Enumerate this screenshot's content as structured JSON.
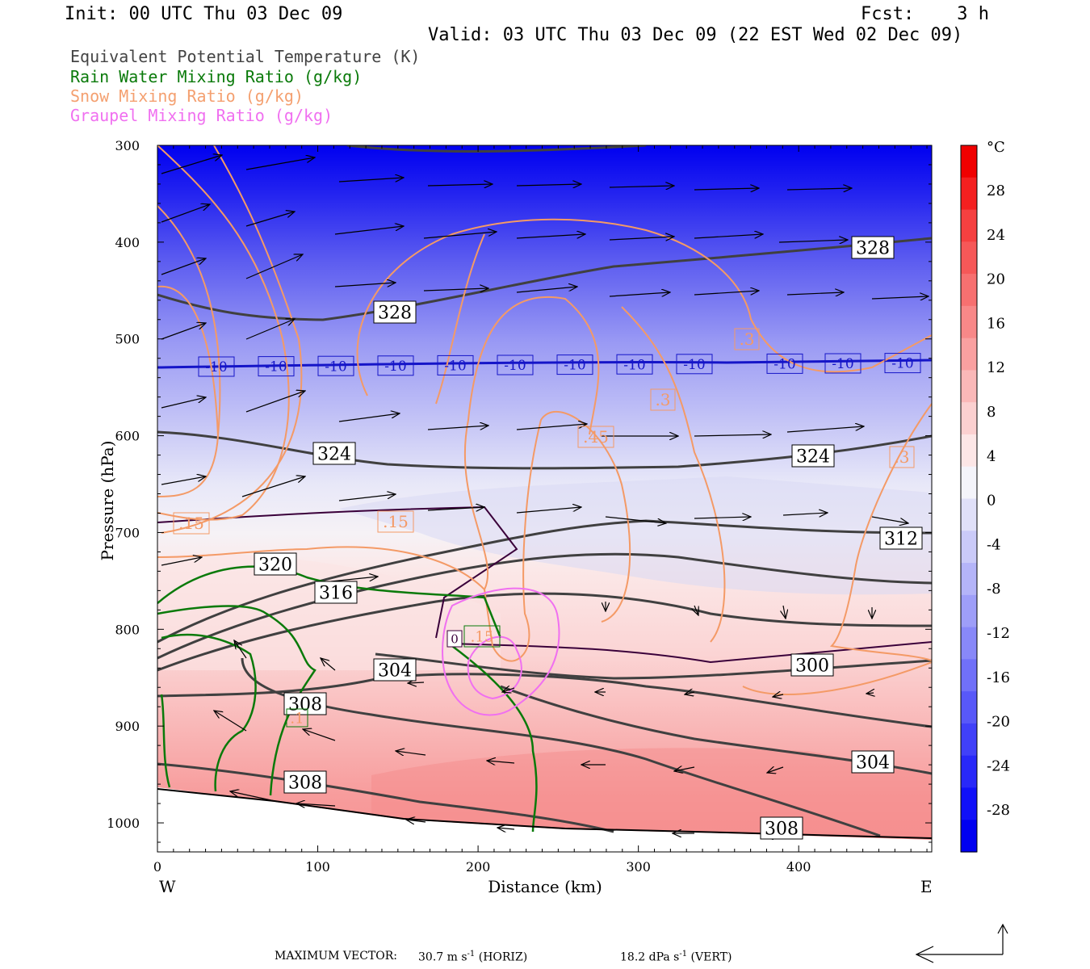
{
  "header": {
    "init": "Init: 00 UTC Thu 03 Dec 09",
    "fcst": "Fcst:    3 h",
    "valid": "Valid: 03 UTC Thu 03 Dec 09 (22 EST Wed 02 Dec 09)"
  },
  "legend": [
    {
      "label": "Equivalent Potential Temperature (K)",
      "color": "#444444"
    },
    {
      "label": "Rain Water Mixing Ratio (g/kg)",
      "color": "#0a7a0a"
    },
    {
      "label": "Snow Mixing Ratio (g/kg)",
      "color": "#f4a070"
    },
    {
      "label": "Graupel Mixing Ratio (g/kg)",
      "color": "#f070f0"
    }
  ],
  "footer": {
    "max_vector_label": "MAXIMUM VECTOR:",
    "horiz_value": "30.7 m s",
    "horiz_suffix": " (HORIZ)",
    "vert_value": "18.2 dPa s",
    "vert_suffix": " (VERT)",
    "exponent": "-1"
  },
  "chart_data": {
    "type": "cross-section",
    "xlabel": "Distance (km)",
    "ylabel": "Pressure (hPa)",
    "x_ticks": [
      0,
      100,
      200,
      300,
      400
    ],
    "xlim": [
      0,
      483
    ],
    "y_ticks": [
      300,
      400,
      500,
      600,
      700,
      800,
      900,
      1000
    ],
    "ylim": [
      300,
      1030
    ],
    "direction_left": "W",
    "direction_right": "E",
    "colorbar": {
      "unit": "°C",
      "ticks": [
        "28",
        "24",
        "20",
        "16",
        "12",
        "8",
        "4",
        "0",
        "-4",
        "-8",
        "-12",
        "-16",
        "-20",
        "-24",
        "-28"
      ],
      "colors": [
        "#f00000",
        "#f42020",
        "#f54040",
        "#f65858",
        "#f77070",
        "#f88888",
        "#f9a0a0",
        "#fab8b8",
        "#fbd0d0",
        "#fce6e6",
        "#f4f4fa",
        "#e0e0f8",
        "#cacaf8",
        "#b4b4f8",
        "#9e9ef8",
        "#8888f8",
        "#7070f8",
        "#5858f8",
        "#4040f8",
        "#2828f8",
        "#1010f8",
        "#0000f0"
      ]
    },
    "theta_e_labels": [
      "328",
      "328",
      "324",
      "324",
      "320",
      "316",
      "312",
      "304",
      "300",
      "304",
      "308",
      "308",
      "308"
    ],
    "snow_labels": [
      ".15",
      ".3",
      ".45",
      ".3",
      ".15",
      ".3"
    ],
    "rain_labels": [
      ".15",
      ".1"
    ],
    "isotherm_labels": [
      "-10",
      "-10",
      "-10",
      "-10",
      "-10",
      "-10",
      "-10",
      "-10",
      "-10",
      "-10",
      "-10",
      "-10"
    ],
    "isotherm_0_label": "0"
  }
}
